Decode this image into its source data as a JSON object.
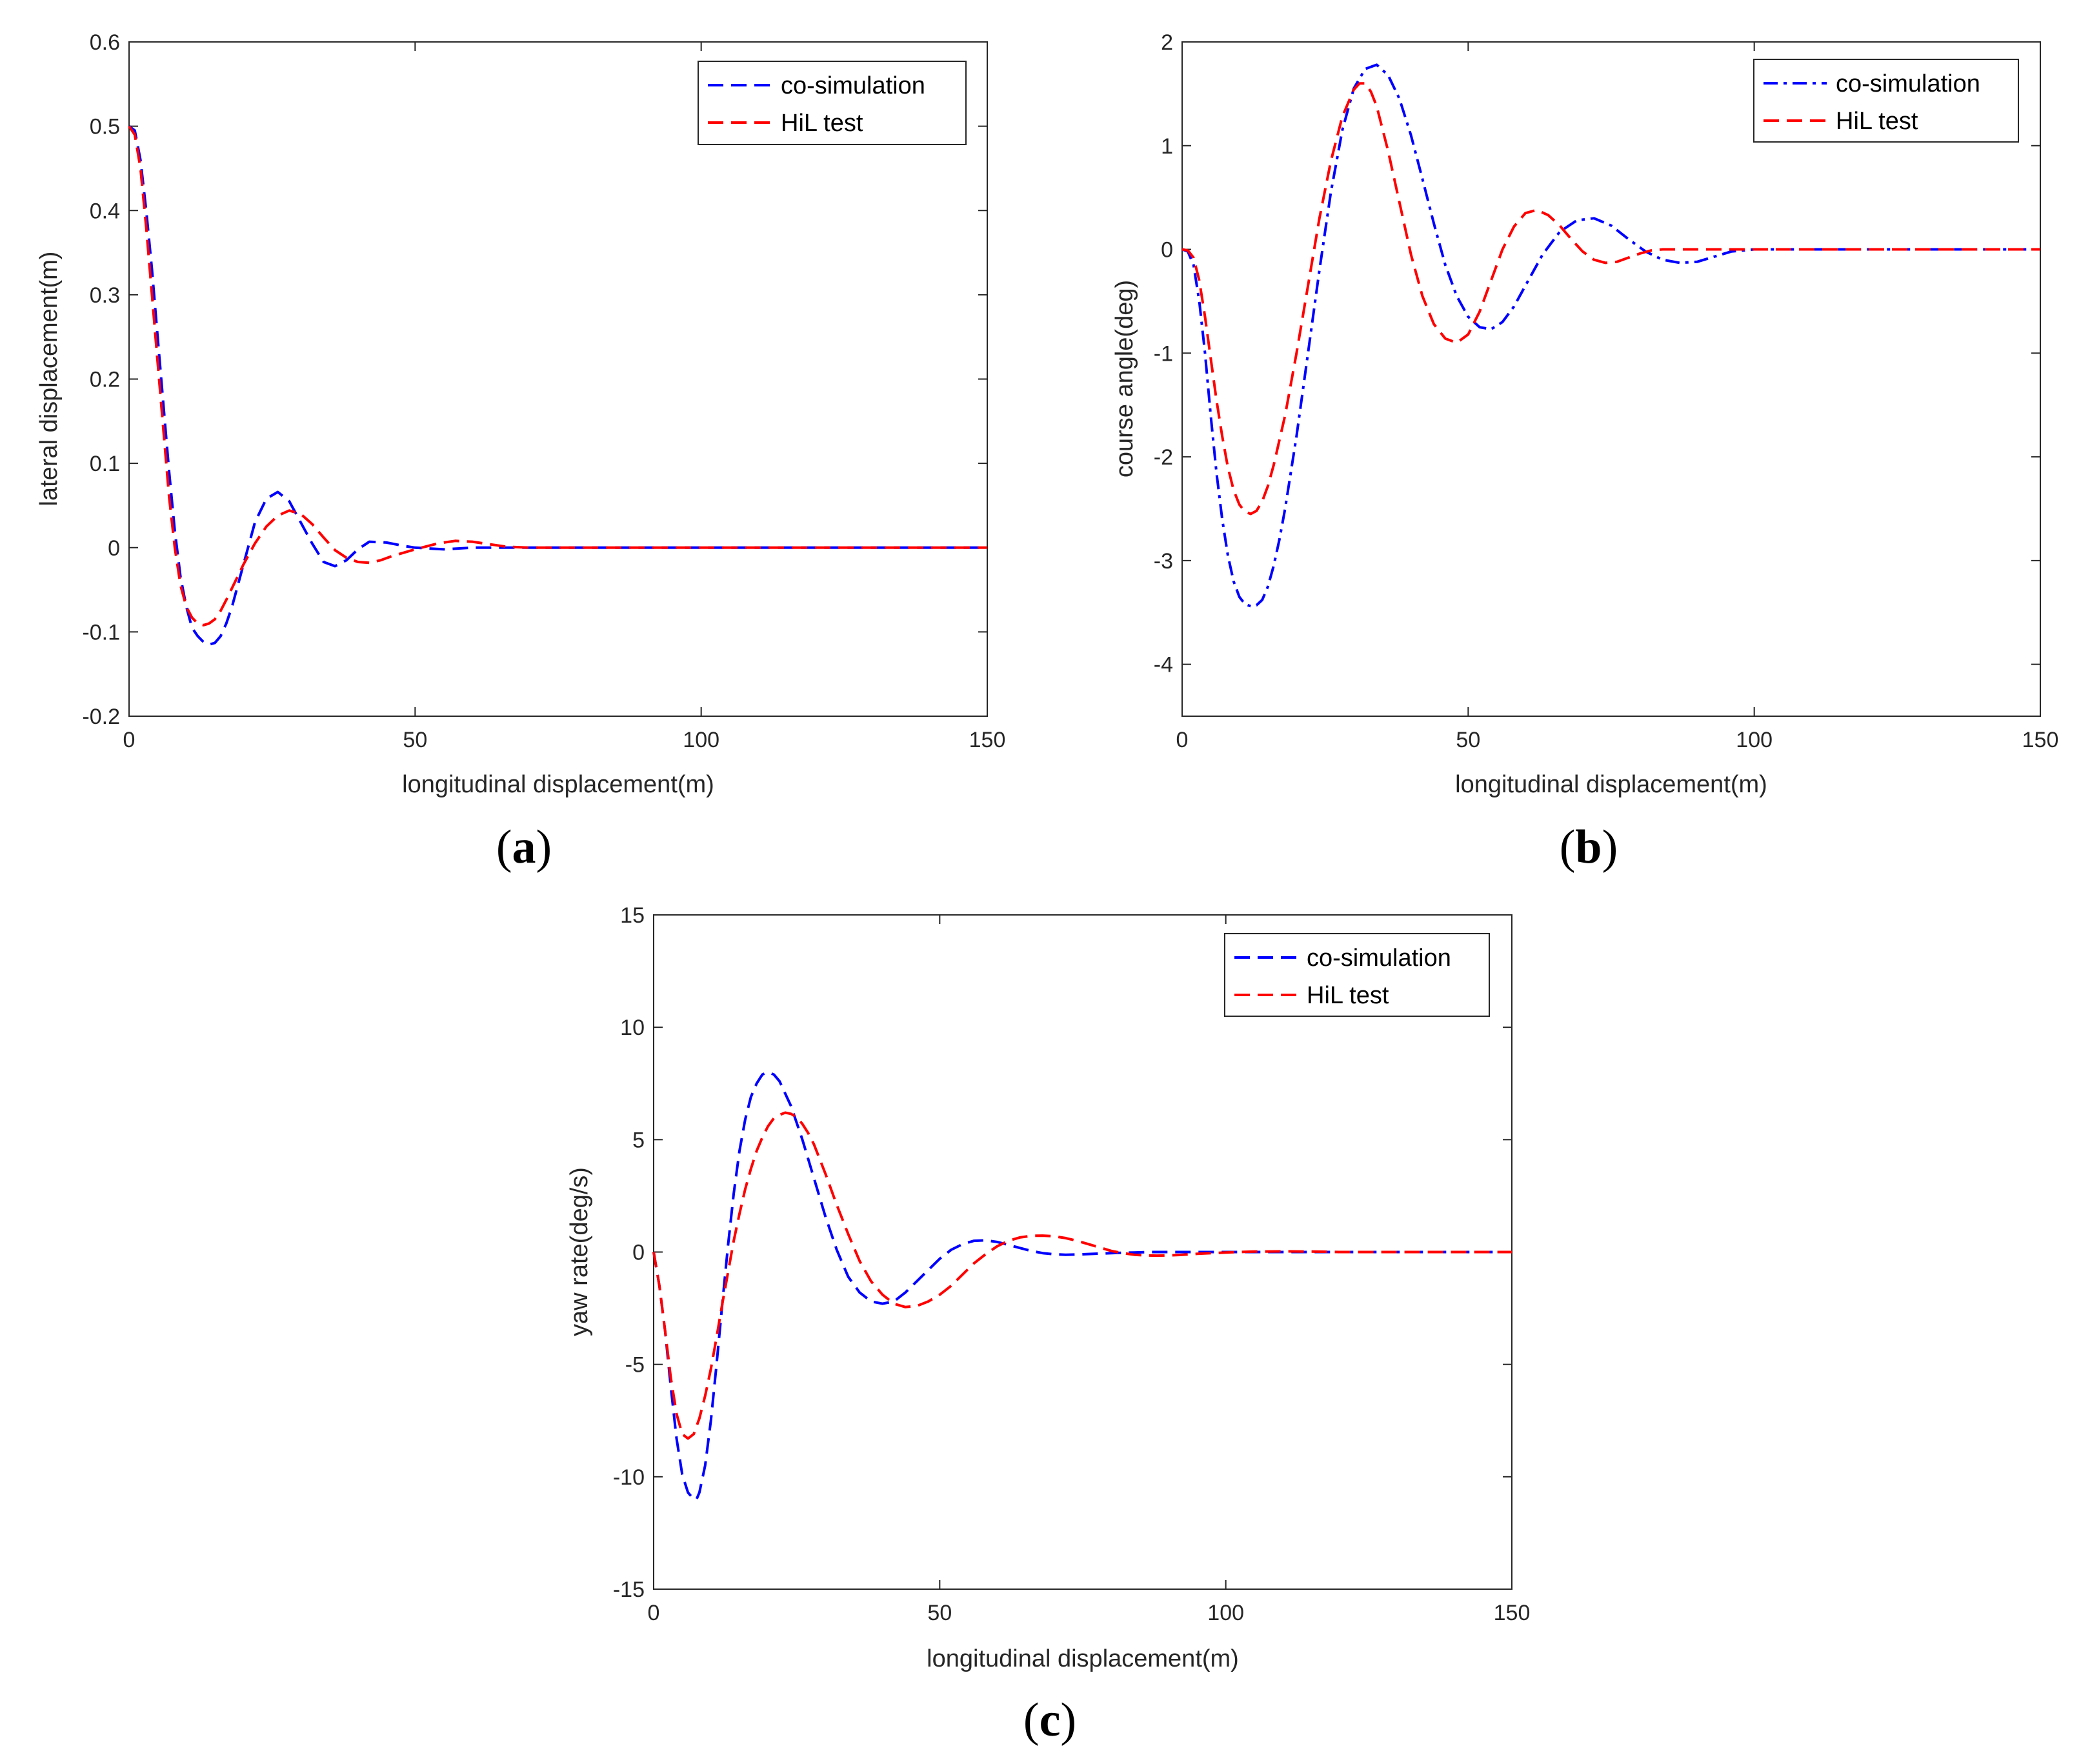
{
  "colors": {
    "co_simulation": "#0000ff",
    "hil_test": "#ff0000",
    "axis": "#262626"
  },
  "chart_data": [
    {
      "id": "a",
      "type": "line",
      "panel_label": [
        "(",
        "a",
        ")"
      ],
      "xlabel": "longitudinal displacement(m)",
      "ylabel": "lateral displacement(m)",
      "xlim": [
        0,
        150
      ],
      "ylim": [
        -0.2,
        0.6
      ],
      "xticks": [
        0,
        50,
        100,
        150
      ],
      "yticks": [
        -0.2,
        -0.1,
        0,
        0.1,
        0.2,
        0.3,
        0.4,
        0.5,
        0.6
      ],
      "ytick_labels": [
        "-0.2",
        "-0.1",
        "0",
        "0.1",
        "0.2",
        "0.3",
        "0.4",
        "0.5",
        "0.6"
      ],
      "grid": false,
      "legend": "top-right",
      "series": [
        {
          "name": "co-simulation",
          "color": "#0000ff",
          "dash": "dash",
          "x": [
            0,
            1,
            2,
            3,
            4,
            5,
            6,
            7,
            8,
            9,
            10,
            11,
            12,
            13,
            14,
            15,
            16,
            17,
            18,
            20,
            22,
            24,
            26,
            28,
            30,
            32,
            34,
            36,
            38,
            40,
            42,
            45,
            48,
            50,
            55,
            60,
            65,
            70,
            80,
            100,
            150
          ],
          "y": [
            0.5,
            0.495,
            0.46,
            0.4,
            0.33,
            0.25,
            0.17,
            0.09,
            0.02,
            -0.035,
            -0.07,
            -0.095,
            -0.105,
            -0.112,
            -0.115,
            -0.113,
            -0.105,
            -0.09,
            -0.07,
            -0.02,
            0.03,
            0.058,
            0.066,
            0.055,
            0.03,
            0.005,
            -0.017,
            -0.022,
            -0.015,
            -0.002,
            0.007,
            0.006,
            0.002,
            0.0,
            -0.002,
            0.0,
            0.0,
            0.0,
            0.0,
            0.0,
            0.0
          ]
        },
        {
          "name": "HiL test",
          "color": "#ff0000",
          "dash": "dash",
          "x": [
            0,
            1,
            2,
            3,
            4,
            5,
            6,
            7,
            8,
            9,
            10,
            11,
            12,
            13,
            14,
            15,
            16,
            17,
            18,
            20,
            22,
            24,
            26,
            28,
            30,
            32,
            34,
            36,
            38,
            40,
            42,
            44,
            46,
            50,
            54,
            57,
            60,
            63,
            66,
            70,
            80,
            100,
            150
          ],
          "y": [
            0.5,
            0.49,
            0.45,
            0.38,
            0.3,
            0.22,
            0.14,
            0.06,
            0.0,
            -0.045,
            -0.07,
            -0.083,
            -0.09,
            -0.092,
            -0.09,
            -0.085,
            -0.075,
            -0.062,
            -0.048,
            -0.02,
            0.005,
            0.025,
            0.038,
            0.044,
            0.04,
            0.028,
            0.012,
            -0.003,
            -0.012,
            -0.017,
            -0.018,
            -0.015,
            -0.01,
            -0.002,
            0.005,
            0.008,
            0.007,
            0.004,
            0.001,
            0.0,
            0.0,
            0.0,
            0.0
          ]
        }
      ]
    },
    {
      "id": "b",
      "type": "line",
      "panel_label": [
        "(",
        "b",
        ")"
      ],
      "xlabel": "longitudinal displacement(m)",
      "ylabel": "course angle(deg)",
      "xlim": [
        0,
        150
      ],
      "ylim": [
        -4.5,
        2
      ],
      "xticks": [
        0,
        50,
        100,
        150
      ],
      "yticks": [
        -4,
        -3,
        -2,
        -1,
        0,
        1,
        2
      ],
      "ytick_labels": [
        "-4",
        "-3",
        "-2",
        "-1",
        "0",
        "1",
        "2"
      ],
      "grid": false,
      "legend": "top-right",
      "series": [
        {
          "name": "co-simulation",
          "color": "#0000ff",
          "dash": "dashdot",
          "x": [
            0,
            1,
            2,
            3,
            4,
            5,
            6,
            7,
            8,
            9,
            10,
            11,
            12,
            13,
            14,
            15,
            16,
            17,
            18,
            20,
            22,
            24,
            26,
            28,
            30,
            32,
            34,
            36,
            38,
            40,
            42,
            44,
            46,
            48,
            50,
            52,
            54,
            56,
            58,
            60,
            63,
            66,
            69,
            72,
            75,
            78,
            81,
            84,
            87,
            90,
            93,
            96,
            100,
            150
          ],
          "y": [
            0,
            -0.02,
            -0.15,
            -0.5,
            -1.0,
            -1.6,
            -2.15,
            -2.6,
            -2.95,
            -3.2,
            -3.35,
            -3.42,
            -3.44,
            -3.43,
            -3.38,
            -3.25,
            -3.05,
            -2.8,
            -2.5,
            -1.8,
            -1.0,
            -0.2,
            0.55,
            1.15,
            1.55,
            1.74,
            1.78,
            1.68,
            1.45,
            1.1,
            0.68,
            0.25,
            -0.15,
            -0.45,
            -0.65,
            -0.75,
            -0.77,
            -0.7,
            -0.55,
            -0.35,
            -0.05,
            0.17,
            0.28,
            0.3,
            0.23,
            0.1,
            -0.02,
            -0.1,
            -0.13,
            -0.12,
            -0.07,
            -0.02,
            0.0,
            0.0
          ]
        },
        {
          "name": "HiL test",
          "color": "#ff0000",
          "dash": "dash",
          "x": [
            0,
            1,
            2,
            3,
            4,
            5,
            6,
            7,
            8,
            9,
            10,
            11,
            12,
            13,
            14,
            15,
            16,
            18,
            20,
            22,
            24,
            26,
            28,
            30,
            31,
            32,
            33,
            34,
            36,
            38,
            40,
            42,
            44,
            46,
            48,
            50,
            52,
            54,
            56,
            58,
            60,
            62,
            64,
            66,
            68,
            70,
            72,
            74,
            76,
            78,
            80,
            82,
            84,
            86,
            90,
            100,
            150
          ],
          "y": [
            0,
            -0.01,
            -0.08,
            -0.3,
            -0.65,
            -1.05,
            -1.45,
            -1.8,
            -2.1,
            -2.32,
            -2.46,
            -2.53,
            -2.55,
            -2.52,
            -2.43,
            -2.28,
            -2.08,
            -1.6,
            -1.0,
            -0.35,
            0.3,
            0.85,
            1.28,
            1.54,
            1.6,
            1.6,
            1.52,
            1.38,
            0.95,
            0.45,
            -0.05,
            -0.45,
            -0.72,
            -0.86,
            -0.9,
            -0.82,
            -0.6,
            -0.3,
            0.0,
            0.22,
            0.35,
            0.38,
            0.33,
            0.23,
            0.1,
            -0.02,
            -0.1,
            -0.13,
            -0.12,
            -0.08,
            -0.04,
            -0.01,
            0.0,
            0.0,
            0.0,
            0.0,
            0.0
          ]
        }
      ]
    },
    {
      "id": "c",
      "type": "line",
      "panel_label": [
        "(",
        "c",
        ")"
      ],
      "xlabel": "longitudinal displacement(m)",
      "ylabel": "yaw rate(deg/s)",
      "xlim": [
        0,
        150
      ],
      "ylim": [
        -15,
        15
      ],
      "xticks": [
        0,
        50,
        100,
        150
      ],
      "yticks": [
        -15,
        -10,
        -5,
        0,
        5,
        10,
        15
      ],
      "ytick_labels": [
        "-15",
        "-10",
        "-5",
        "0",
        "5",
        "10",
        "15"
      ],
      "grid": false,
      "legend": "top-right",
      "series": [
        {
          "name": "co-simulation",
          "color": "#0000ff",
          "dash": "dash",
          "x": [
            0,
            1,
            2,
            3,
            4,
            5,
            6,
            7,
            7.5,
            8,
            9,
            10,
            11,
            12,
            13,
            14,
            15,
            16,
            17,
            18,
            19,
            20,
            21,
            22,
            24,
            26,
            28,
            30,
            32,
            34,
            36,
            38,
            40,
            42,
            44,
            46,
            48,
            50,
            52,
            54,
            56,
            58,
            60,
            62,
            64,
            66,
            68,
            70,
            72,
            75,
            78,
            81,
            84,
            87,
            90,
            95,
            100,
            105,
            110,
            115,
            120,
            150
          ],
          "y": [
            0,
            -1.5,
            -3.5,
            -6.0,
            -8.3,
            -9.9,
            -10.7,
            -11.0,
            -11.0,
            -10.7,
            -9.5,
            -7.5,
            -5.0,
            -2.3,
            0.3,
            2.6,
            4.5,
            5.9,
            6.9,
            7.5,
            7.9,
            8.0,
            7.9,
            7.6,
            6.5,
            5.0,
            3.3,
            1.6,
            0.1,
            -1.1,
            -1.8,
            -2.2,
            -2.3,
            -2.2,
            -1.8,
            -1.3,
            -0.8,
            -0.3,
            0.1,
            0.35,
            0.5,
            0.52,
            0.45,
            0.32,
            0.18,
            0.05,
            -0.05,
            -0.1,
            -0.12,
            -0.1,
            -0.07,
            -0.04,
            -0.02,
            0.0,
            0.0,
            0.0,
            0.0,
            0.0,
            0.0,
            0.0,
            0.0,
            0.0
          ]
        },
        {
          "name": "HiL test",
          "color": "#ff0000",
          "dash": "dash",
          "x": [
            0,
            1,
            2,
            3,
            4,
            5,
            6,
            7,
            8,
            9,
            10,
            11,
            12,
            13,
            14,
            15,
            16,
            17,
            18,
            19,
            20,
            21,
            22,
            23,
            24,
            25,
            26,
            27,
            28,
            30,
            32,
            34,
            36,
            38,
            40,
            42,
            44,
            46,
            48,
            50,
            52,
            54,
            56,
            58,
            60,
            62,
            64,
            66,
            68,
            70,
            72,
            74,
            76,
            78,
            80,
            82,
            84,
            86,
            88,
            90,
            92,
            95,
            100,
            105,
            110,
            115,
            120,
            125,
            130,
            150
          ],
          "y": [
            0,
            -1.5,
            -3.5,
            -5.6,
            -7.2,
            -8.1,
            -8.3,
            -8.1,
            -7.4,
            -6.4,
            -5.2,
            -3.8,
            -2.3,
            -0.9,
            0.5,
            1.7,
            2.8,
            3.7,
            4.5,
            5.1,
            5.6,
            5.95,
            6.1,
            6.2,
            6.15,
            6.0,
            5.7,
            5.3,
            4.8,
            3.5,
            2.1,
            0.8,
            -0.4,
            -1.3,
            -1.9,
            -2.3,
            -2.45,
            -2.4,
            -2.2,
            -1.9,
            -1.5,
            -1.0,
            -0.5,
            -0.1,
            0.25,
            0.5,
            0.65,
            0.72,
            0.73,
            0.7,
            0.62,
            0.5,
            0.35,
            0.2,
            0.05,
            -0.05,
            -0.12,
            -0.15,
            -0.16,
            -0.15,
            -0.13,
            -0.08,
            -0.02,
            0.02,
            0.03,
            0.02,
            0.0,
            0.0,
            0.0,
            0.0
          ]
        }
      ]
    }
  ]
}
